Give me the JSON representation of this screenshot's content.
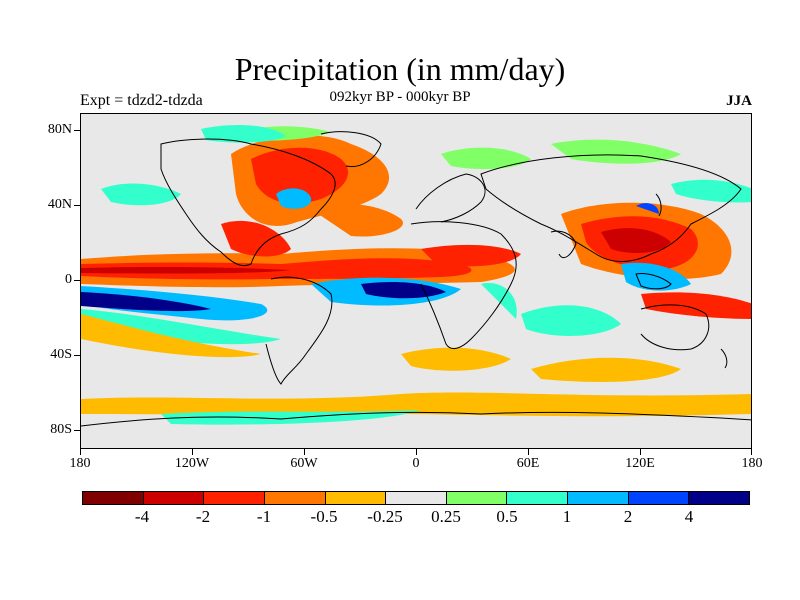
{
  "header": {
    "title": "Precipitation (in mm/day)",
    "subtitle": "092kyr BP - 000kyr BP",
    "experiment": "Expt = tdzd2-tdzda",
    "season": "JJA"
  },
  "axes": {
    "lat_labels": [
      "80N",
      "40N",
      "0",
      "40S",
      "80S"
    ],
    "lon_labels": [
      "180",
      "120W",
      "60W",
      "0",
      "60E",
      "120E",
      "180"
    ]
  },
  "colorbar": {
    "colors": [
      "#800000",
      "#cc0000",
      "#ff2200",
      "#ff7700",
      "#ffbb00",
      "#e8e8e8",
      "#80ff66",
      "#33ffcc",
      "#00bbff",
      "#0044ff",
      "#000088"
    ],
    "labels": [
      "-4",
      "-2",
      "-1",
      "-0.5",
      "-0.25",
      "0.25",
      "0.5",
      "1",
      "2",
      "4"
    ]
  },
  "map": {
    "background_color": "#e8e8e8",
    "coastline_color": "#000000"
  }
}
